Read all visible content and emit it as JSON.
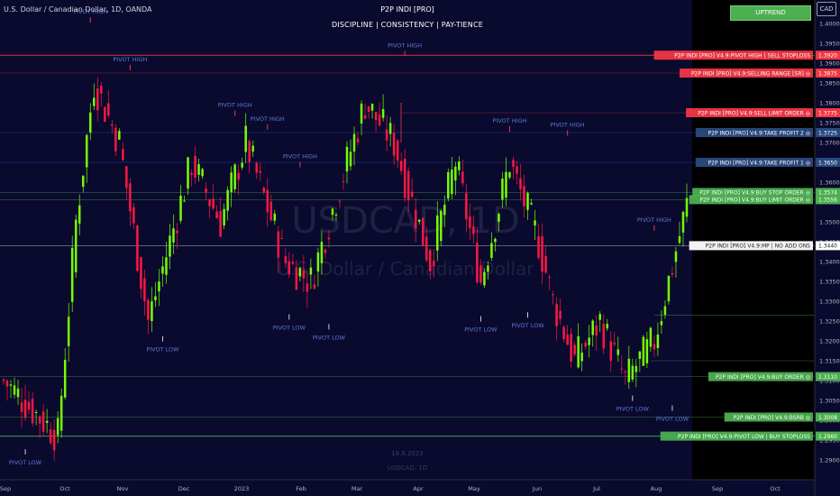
{
  "header": {
    "symbol_title": "U.S. Dollar / Canadian Dollar, 1D, OANDA",
    "indicator_title": "P2P INDI [PRO]",
    "tagline": "DISCIPLINE  |  CONSISTENCY  |  PAY-TIENCE",
    "currency": "CAD",
    "trend_label": "UPTREND"
  },
  "watermark": {
    "symbol": "USDCAD, 1D",
    "name": "U.S. Dollar / Canadian Dollar",
    "date": "18.8.2023",
    "footer": "USDCAD, 1D"
  },
  "colors": {
    "background": "#0a0a2e",
    "bull_candle": "#76ff03",
    "bear_candle": "#ff1744",
    "sell_level": "#f23645",
    "buy_level": "#4caf50",
    "tp_level": "#2962ff",
    "axis_text": "#b2b5be"
  },
  "chart_data": {
    "type": "candlestick",
    "y_range": [
      1.285,
      1.405
    ],
    "y_ticks": [
      1.4,
      1.395,
      1.39,
      1.385,
      1.38,
      1.375,
      1.37,
      1.365,
      1.36,
      1.355,
      1.35,
      1.345,
      1.34,
      1.335,
      1.33,
      1.325,
      1.32,
      1.315,
      1.31,
      1.305,
      1.3,
      1.295,
      1.29
    ],
    "x_ticks": [
      "Sep",
      "Oct",
      "Nov",
      "Dec",
      "2023",
      "Feb",
      "Mar",
      "Apr",
      "May",
      "Jun",
      "Jul",
      "Aug",
      "Sep",
      "Oct"
    ],
    "trend": [
      [
        1.31,
        0
      ],
      [
        1.296,
        15
      ],
      [
        1.35,
        20
      ],
      [
        1.385,
        25
      ],
      [
        1.37,
        32
      ],
      [
        1.325,
        40
      ],
      [
        1.365,
        52
      ],
      [
        1.35,
        60
      ],
      [
        1.37,
        67
      ],
      [
        1.34,
        78
      ],
      [
        1.335,
        85
      ],
      [
        1.35,
        90
      ],
      [
        1.38,
        100
      ],
      [
        1.37,
        108
      ],
      [
        1.34,
        118
      ],
      [
        1.365,
        125
      ],
      [
        1.335,
        132
      ],
      [
        1.365,
        140
      ],
      [
        1.345,
        148
      ],
      [
        1.33,
        152
      ],
      [
        1.315,
        158
      ],
      [
        1.325,
        165
      ],
      [
        1.31,
        172
      ],
      [
        1.32,
        180
      ],
      [
        1.358,
        190
      ]
    ],
    "levels": [
      {
        "price": 1.392,
        "label": "P2P INDI [PRO] V4.9:PIVOT HIGH  |  SELL STOPLOSS",
        "value": "1.3920",
        "kind": "sell"
      },
      {
        "price": 1.3875,
        "label": "P2P INDI [PRO] V4.9:SELLING RANGE [SR] ◎",
        "value": "1.3875",
        "kind": "sell"
      },
      {
        "price": 1.3775,
        "label": "P2P INDI [PRO] V4.9:SELL LIMIT ORDER ◎",
        "value": "1.3775",
        "kind": "sell"
      },
      {
        "price": 1.3725,
        "label": "P2P INDI [PRO] V4.9:TAKE PROFIT 2 ◎",
        "value": "1.3725",
        "kind": "tp"
      },
      {
        "price": 1.365,
        "label": "P2P INDI [PRO] V4.9:TAKE PROFIT 1 ◎",
        "value": "1.3650",
        "kind": "tp"
      },
      {
        "price": 1.3574,
        "label": "P2P INDI [PRO] V4.9:BUY STOP ORDER ◎",
        "value": "1.3574",
        "kind": "buy"
      },
      {
        "price": 1.3556,
        "label": "P2P INDI [PRO] V4.9:BUY LIMIT ORDER ◎",
        "value": "1.3556",
        "kind": "buy"
      },
      {
        "price": 1.344,
        "label": "P2P INDI [PRO] V4.9:MP  |  NO ADD ONS",
        "value": "1.3440",
        "kind": "mp"
      },
      {
        "price": 1.311,
        "label": "P2P INDI [PRO] V4.9:BUY ORDER ◎",
        "value": "1.3110",
        "kind": "buy"
      },
      {
        "price": 1.3008,
        "label": "P2P INDI [PRO] V4.9:BSRB ◎",
        "value": "1.3008",
        "kind": "buy"
      },
      {
        "price": 1.296,
        "label": "P2P INDI [PRO] V4.9:PIVOT LOW  |  BUY STOPLOSS",
        "value": "1.2960",
        "kind": "buy"
      }
    ],
    "pivots": [
      {
        "label": "PIVOT HIGH",
        "x": 24,
        "price": 1.3975,
        "dir": "high"
      },
      {
        "label": "PIVOT HIGH",
        "x": 35,
        "price": 1.3855,
        "dir": "high"
      },
      {
        "label": "PIVOT HIGH",
        "x": 64,
        "price": 1.374,
        "dir": "high"
      },
      {
        "label": "PIVOT HIGH",
        "x": 73,
        "price": 1.3705,
        "dir": "high"
      },
      {
        "label": "PIVOT HIGH",
        "x": 82,
        "price": 1.361,
        "dir": "high"
      },
      {
        "label": "PIVOT HIGH",
        "x": 111,
        "price": 1.389,
        "dir": "high"
      },
      {
        "label": "PIVOT HIGH",
        "x": 140,
        "price": 1.37,
        "dir": "high"
      },
      {
        "label": "PIVOT HIGH",
        "x": 156,
        "price": 1.369,
        "dir": "high"
      },
      {
        "label": "PIVOT HIGH",
        "x": 180,
        "price": 1.345,
        "dir": "high"
      },
      {
        "label": "PIVOT LOW",
        "x": 6,
        "price": 1.295,
        "dir": "low"
      },
      {
        "label": "PIVOT LOW",
        "x": 44,
        "price": 1.3235,
        "dir": "low"
      },
      {
        "label": "PIVOT LOW",
        "x": 79,
        "price": 1.329,
        "dir": "low"
      },
      {
        "label": "PIVOT LOW",
        "x": 90,
        "price": 1.3265,
        "dir": "low"
      },
      {
        "label": "PIVOT LOW",
        "x": 132,
        "price": 1.3285,
        "dir": "low"
      },
      {
        "label": "PIVOT LOW",
        "x": 145,
        "price": 1.3295,
        "dir": "low"
      },
      {
        "label": "PIVOT LOW",
        "x": 174,
        "price": 1.3085,
        "dir": "low"
      },
      {
        "label": "PIVOT LOW",
        "x": 185,
        "price": 1.306,
        "dir": "low"
      }
    ]
  }
}
